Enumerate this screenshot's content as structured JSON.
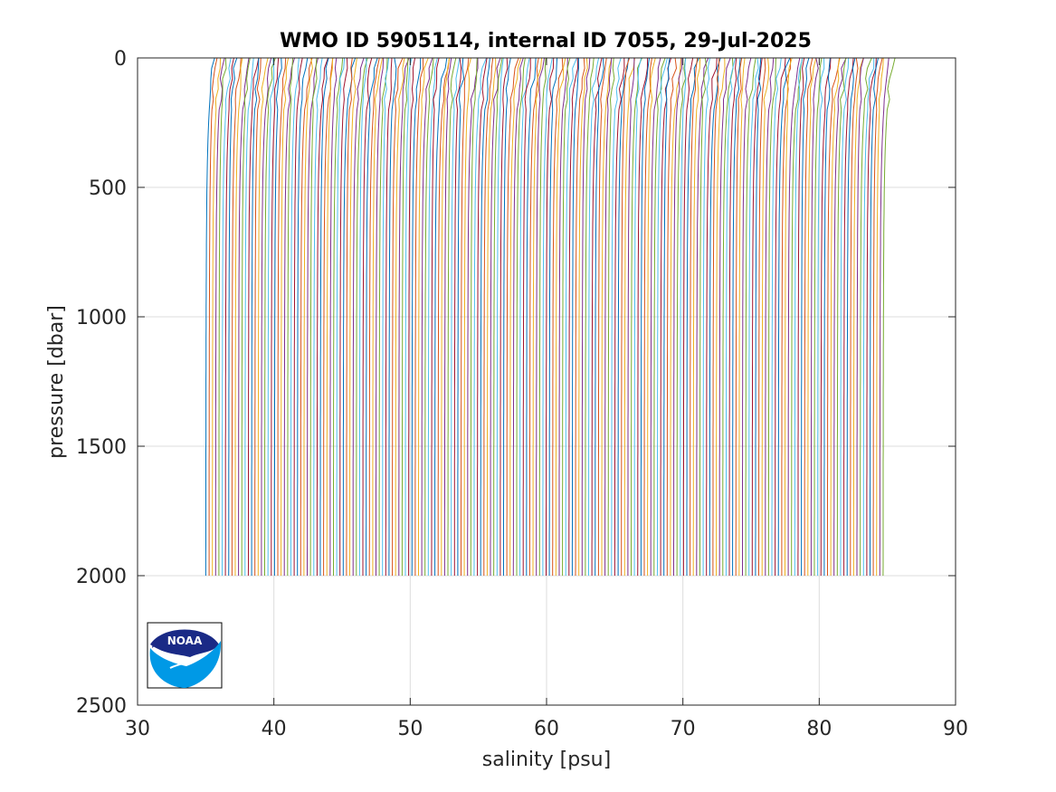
{
  "chart_data": {
    "type": "line",
    "title": "WMO ID 5905114, internal ID 7055, 29-Jul-2025",
    "xlabel": "salinity [psu]",
    "ylabel": "pressure [dbar]",
    "xlim": [
      30,
      90
    ],
    "ylim": [
      0,
      2500
    ],
    "y_reversed": true,
    "grid": true,
    "x_ticks": [
      30,
      40,
      50,
      60,
      70,
      80,
      90
    ],
    "y_ticks": [
      0,
      500,
      1000,
      1500,
      2000,
      2500
    ],
    "profile_count": 208,
    "profile_offset_step": 0.24,
    "first_profile_salinity_at_2000dbar": 35.0,
    "last_profile_salinity_at_2000dbar": 85.0,
    "max_pressure": 2000,
    "series_colors": [
      "#0072BD",
      "#D95319",
      "#EDB120",
      "#7E2F8E",
      "#77AC30",
      "#4DBEEE",
      "#A2142F"
    ]
  },
  "logo": {
    "name": "NOAA logo",
    "text": "NOAA",
    "colors": {
      "navy": "#1A2A86",
      "sky": "#0099E6"
    }
  }
}
